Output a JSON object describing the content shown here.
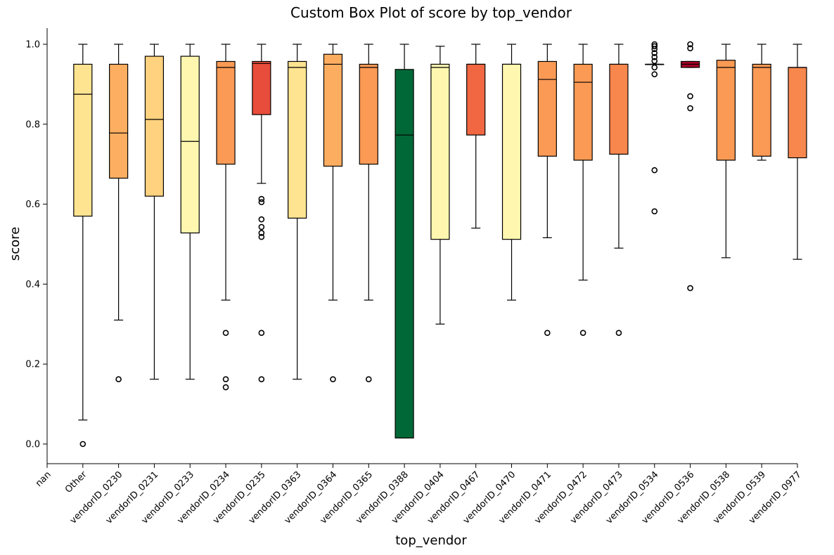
{
  "chart_data": {
    "type": "box",
    "title": "Custom Box Plot of score by top_vendor",
    "xlabel": "top_vendor",
    "ylabel": "score",
    "ylim": [
      0.0,
      1.0
    ],
    "yticks": [
      "0.0",
      "0.2",
      "0.4",
      "0.6",
      "0.8",
      "1.0"
    ],
    "grid": false,
    "categories": [
      "nan",
      "Other",
      "vendorID_0230",
      "vendorID_0231",
      "vendorID_0233",
      "vendorID_0234",
      "vendorID_0235",
      "vendorID_0363",
      "vendorID_0364",
      "vendorID_0365",
      "vendorID_0388",
      "vendorID_0404",
      "vendorID_0467",
      "vendorID_0470",
      "vendorID_0471",
      "vendorID_0472",
      "vendorID_0473",
      "vendorID_0534",
      "vendorID_0536",
      "vendorID_0538",
      "vendorID_0539",
      "vendorID_0977"
    ],
    "boxes": [
      {
        "category": "nan",
        "empty": true
      },
      {
        "category": "Other",
        "whislo": 0.06,
        "q1": 0.57,
        "med": 0.875,
        "q3": 0.95,
        "whishi": 1.0,
        "fliers": [
          0.0
        ],
        "color": "#fee391"
      },
      {
        "category": "vendorID_0230",
        "whislo": 0.31,
        "q1": 0.665,
        "med": 0.778,
        "q3": 0.95,
        "whishi": 1.0,
        "fliers": [
          0.162
        ],
        "color": "#fdae61"
      },
      {
        "category": "vendorID_0231",
        "whislo": 0.162,
        "q1": 0.62,
        "med": 0.812,
        "q3": 0.97,
        "whishi": 1.0,
        "fliers": [],
        "color": "#fed27f"
      },
      {
        "category": "vendorID_0233",
        "whislo": 0.162,
        "q1": 0.528,
        "med": 0.757,
        "q3": 0.97,
        "whishi": 1.0,
        "fliers": [],
        "color": "#fff7b0"
      },
      {
        "category": "vendorID_0234",
        "whislo": 0.36,
        "q1": 0.7,
        "med": 0.942,
        "q3": 0.957,
        "whishi": 1.0,
        "fliers": [
          0.278,
          0.162,
          0.142
        ],
        "color": "#fb9a55"
      },
      {
        "category": "vendorID_0235",
        "whislo": 0.652,
        "q1": 0.824,
        "med": 0.952,
        "q3": 0.957,
        "whishi": 1.0,
        "fliers": [
          0.613,
          0.605,
          0.562,
          0.543,
          0.528,
          0.518,
          0.278,
          0.162
        ],
        "color": "#e84c3a"
      },
      {
        "category": "vendorID_0363",
        "whislo": 0.162,
        "q1": 0.565,
        "med": 0.942,
        "q3": 0.957,
        "whishi": 1.0,
        "fliers": [],
        "color": "#fee391"
      },
      {
        "category": "vendorID_0364",
        "whislo": 0.36,
        "q1": 0.695,
        "med": 0.95,
        "q3": 0.975,
        "whishi": 1.0,
        "fliers": [
          0.162
        ],
        "color": "#fdad60"
      },
      {
        "category": "vendorID_0365",
        "whislo": 0.36,
        "q1": 0.7,
        "med": 0.942,
        "q3": 0.95,
        "whishi": 1.0,
        "fliers": [
          0.162
        ],
        "color": "#fb9a55"
      },
      {
        "category": "vendorID_0388",
        "whislo": 0.015,
        "q1": 0.015,
        "med": 0.773,
        "q3": 0.937,
        "whishi": 1.0,
        "fliers": [],
        "color": "#006837"
      },
      {
        "category": "vendorID_0404",
        "whislo": 0.3,
        "q1": 0.512,
        "med": 0.942,
        "q3": 0.95,
        "whishi": 0.995,
        "fliers": [],
        "color": "#fff7b0"
      },
      {
        "category": "vendorID_0467",
        "whislo": 0.54,
        "q1": 0.773,
        "med": 0.95,
        "q3": 0.95,
        "whishi": 1.0,
        "fliers": [],
        "color": "#f16742"
      },
      {
        "category": "vendorID_0470",
        "whislo": 0.36,
        "q1": 0.512,
        "med": 0.95,
        "q3": 0.95,
        "whishi": 1.0,
        "fliers": [],
        "color": "#fff7b0"
      },
      {
        "category": "vendorID_0471",
        "whislo": 0.516,
        "q1": 0.72,
        "med": 0.912,
        "q3": 0.957,
        "whishi": 1.0,
        "fliers": [
          0.278
        ],
        "color": "#fb9a55"
      },
      {
        "category": "vendorID_0472",
        "whislo": 0.41,
        "q1": 0.71,
        "med": 0.905,
        "q3": 0.95,
        "whishi": 1.0,
        "fliers": [
          0.278
        ],
        "color": "#fb9a55"
      },
      {
        "category": "vendorID_0473",
        "whislo": 0.49,
        "q1": 0.725,
        "med": 0.95,
        "q3": 0.95,
        "whishi": 1.0,
        "fliers": [
          0.278
        ],
        "color": "#f8874e"
      },
      {
        "category": "vendorID_0534",
        "whislo": 0.95,
        "q1": 0.95,
        "med": 0.95,
        "q3": 0.95,
        "whishi": 0.95,
        "fliers": [
          1.0,
          0.995,
          0.988,
          0.978,
          0.968,
          0.958,
          0.942,
          0.925,
          0.685,
          0.582
        ],
        "color": "#f46d43"
      },
      {
        "category": "vendorID_0536",
        "whislo": 0.942,
        "q1": 0.942,
        "med": 0.95,
        "q3": 0.957,
        "whishi": 0.957,
        "fliers": [
          1.0,
          0.99,
          0.87,
          0.84,
          0.39
        ],
        "color": "#a50026"
      },
      {
        "category": "vendorID_0538",
        "whislo": 0.466,
        "q1": 0.71,
        "med": 0.942,
        "q3": 0.96,
        "whishi": 1.0,
        "fliers": [],
        "color": "#fb9a55"
      },
      {
        "category": "vendorID_0539",
        "whislo": 0.71,
        "q1": 0.72,
        "med": 0.942,
        "q3": 0.95,
        "whishi": 1.0,
        "fliers": [],
        "color": "#fb9a55"
      },
      {
        "category": "vendorID_0977",
        "whislo": 0.462,
        "q1": 0.716,
        "med": 0.942,
        "q3": 0.942,
        "whishi": 1.0,
        "fliers": [],
        "color": "#f8874e"
      }
    ]
  }
}
